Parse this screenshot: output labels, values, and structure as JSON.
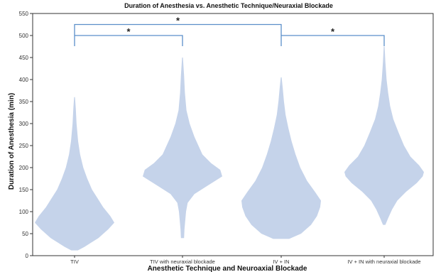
{
  "chart_data": {
    "type": "violin",
    "title": "Duration of Anesthesia vs. Anesthetic Technique/Neuraxial Blockade",
    "xlabel": "Anesthetic Technique and Neuroaxial Blockade",
    "ylabel": "Duration of Anesthesia (min)",
    "ylim": [
      0,
      550
    ],
    "yticks": [
      0,
      50,
      100,
      150,
      200,
      250,
      300,
      350,
      400,
      450,
      500,
      550
    ],
    "categories": [
      "TIV",
      "TIV with neuraxial blockade",
      "IV + IN",
      "IV + IN with neuraxial blockade"
    ],
    "grid": false,
    "fill_color": "#c5d3ea",
    "bracket_color": "#5b8fc9",
    "violins": [
      {
        "category": "TIV",
        "profile": [
          [
            12,
            0.08
          ],
          [
            20,
            0.25
          ],
          [
            40,
            0.6
          ],
          [
            60,
            0.85
          ],
          [
            75,
            1.0
          ],
          [
            90,
            0.9
          ],
          [
            110,
            0.72
          ],
          [
            130,
            0.58
          ],
          [
            150,
            0.44
          ],
          [
            175,
            0.32
          ],
          [
            200,
            0.22
          ],
          [
            230,
            0.14
          ],
          [
            260,
            0.09
          ],
          [
            300,
            0.05
          ],
          [
            335,
            0.03
          ],
          [
            360,
            0.01
          ]
        ]
      },
      {
        "category": "TIV with neuraxial blockade",
        "profile": [
          [
            40,
            0.04
          ],
          [
            60,
            0.05
          ],
          [
            80,
            0.07
          ],
          [
            100,
            0.09
          ],
          [
            120,
            0.13
          ],
          [
            140,
            0.3
          ],
          [
            160,
            0.65
          ],
          [
            180,
            1.0
          ],
          [
            195,
            0.95
          ],
          [
            210,
            0.72
          ],
          [
            230,
            0.5
          ],
          [
            250,
            0.4
          ],
          [
            270,
            0.3
          ],
          [
            300,
            0.18
          ],
          [
            330,
            0.1
          ],
          [
            370,
            0.06
          ],
          [
            410,
            0.04
          ],
          [
            450,
            0.01
          ]
        ]
      },
      {
        "category": "IV + IN",
        "profile": [
          [
            38,
            0.2
          ],
          [
            50,
            0.5
          ],
          [
            70,
            0.75
          ],
          [
            90,
            0.9
          ],
          [
            110,
            0.98
          ],
          [
            125,
            1.0
          ],
          [
            145,
            0.85
          ],
          [
            170,
            0.65
          ],
          [
            200,
            0.48
          ],
          [
            230,
            0.36
          ],
          [
            260,
            0.26
          ],
          [
            290,
            0.18
          ],
          [
            320,
            0.11
          ],
          [
            350,
            0.07
          ],
          [
            380,
            0.04
          ],
          [
            405,
            0.01
          ]
        ]
      },
      {
        "category": "IV + IN with neuraxial blockade",
        "profile": [
          [
            70,
            0.03
          ],
          [
            85,
            0.1
          ],
          [
            105,
            0.2
          ],
          [
            125,
            0.33
          ],
          [
            145,
            0.55
          ],
          [
            165,
            0.82
          ],
          [
            180,
            0.97
          ],
          [
            190,
            1.0
          ],
          [
            205,
            0.88
          ],
          [
            225,
            0.66
          ],
          [
            250,
            0.5
          ],
          [
            280,
            0.36
          ],
          [
            310,
            0.23
          ],
          [
            340,
            0.15
          ],
          [
            370,
            0.1
          ],
          [
            400,
            0.06
          ],
          [
            440,
            0.03
          ],
          [
            475,
            0.01
          ]
        ]
      }
    ],
    "annotations": [
      {
        "from": "TIV",
        "to": "TIV with neuraxial blockade",
        "label": "*",
        "level": 500
      },
      {
        "from": "TIV",
        "to": "IV + IN",
        "label": "*",
        "level": 525
      },
      {
        "from": "IV + IN",
        "to": "IV + IN with neuraxial blockade",
        "label": "*",
        "level": 500
      }
    ]
  }
}
